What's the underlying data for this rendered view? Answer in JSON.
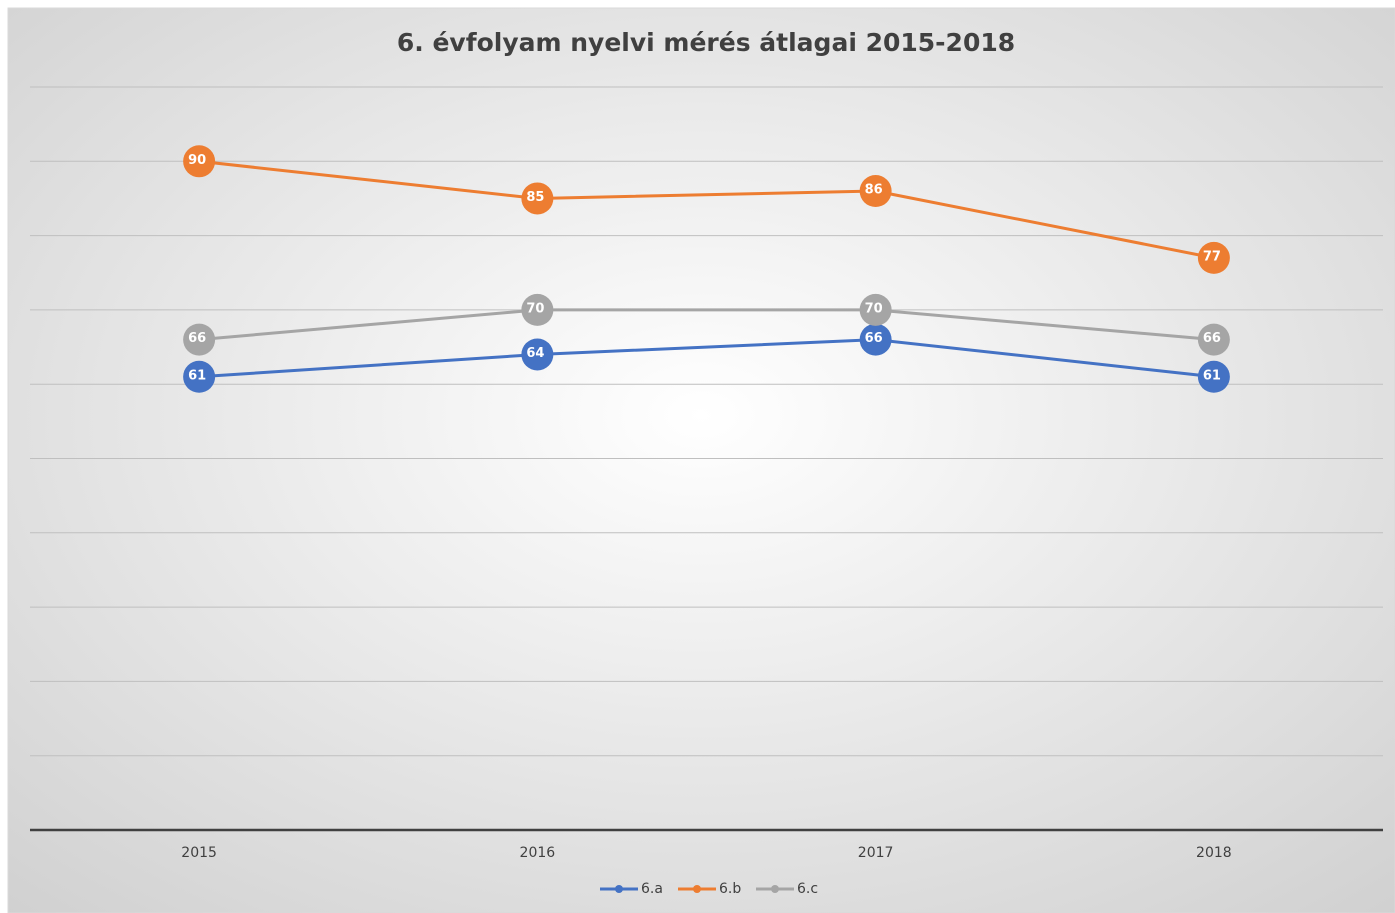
{
  "chart_data": {
    "type": "line",
    "title": "6. évfolyam nyelvi mérés átlagai 2015-2018",
    "categories": [
      "2015",
      "2016",
      "2017",
      "2018"
    ],
    "series": [
      {
        "name": "6.a",
        "color": "#4472c4",
        "values": [
          61,
          64,
          66,
          61
        ]
      },
      {
        "name": "6.b",
        "color": "#ed7d31",
        "values": [
          90,
          85,
          86,
          77
        ]
      },
      {
        "name": "6.c",
        "color": "#a5a5a5",
        "values": [
          66,
          70,
          70,
          66
        ]
      }
    ],
    "ylim": [
      0,
      100
    ],
    "yticks": [
      0,
      10,
      20,
      30,
      40,
      50,
      60,
      70,
      80,
      90,
      100
    ],
    "grid": true,
    "legend": "bottom"
  }
}
